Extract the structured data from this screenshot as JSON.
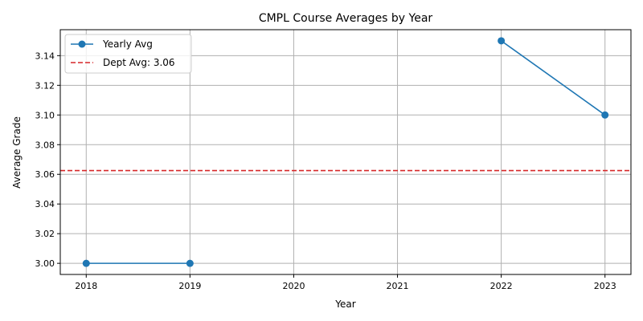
{
  "chart_data": {
    "type": "line",
    "title": "CMPL Course Averages by Year",
    "xlabel": "Year",
    "ylabel": "Average Grade",
    "x_ticks": [
      "2018",
      "2019",
      "2020",
      "2021",
      "2022",
      "2023"
    ],
    "y_ticks": [
      "3.00",
      "3.02",
      "3.04",
      "3.06",
      "3.08",
      "3.10",
      "3.12",
      "3.14"
    ],
    "xlim": [
      2017.75,
      2023.25
    ],
    "ylim": [
      2.9925,
      3.1575
    ],
    "grid": true,
    "legend_position": "top-left",
    "series": [
      {
        "name": "Yearly Avg",
        "color": "#1f77b4",
        "marker": "circle",
        "segments": [
          [
            [
              2018,
              3.0
            ],
            [
              2019,
              3.0
            ]
          ],
          [
            [
              2022,
              3.15
            ],
            [
              2023,
              3.1
            ]
          ]
        ]
      }
    ],
    "reference_lines": [
      {
        "name": "Dept Avg: 3.06",
        "y": 3.0625,
        "color": "#d62728",
        "style": "dashed"
      }
    ]
  }
}
